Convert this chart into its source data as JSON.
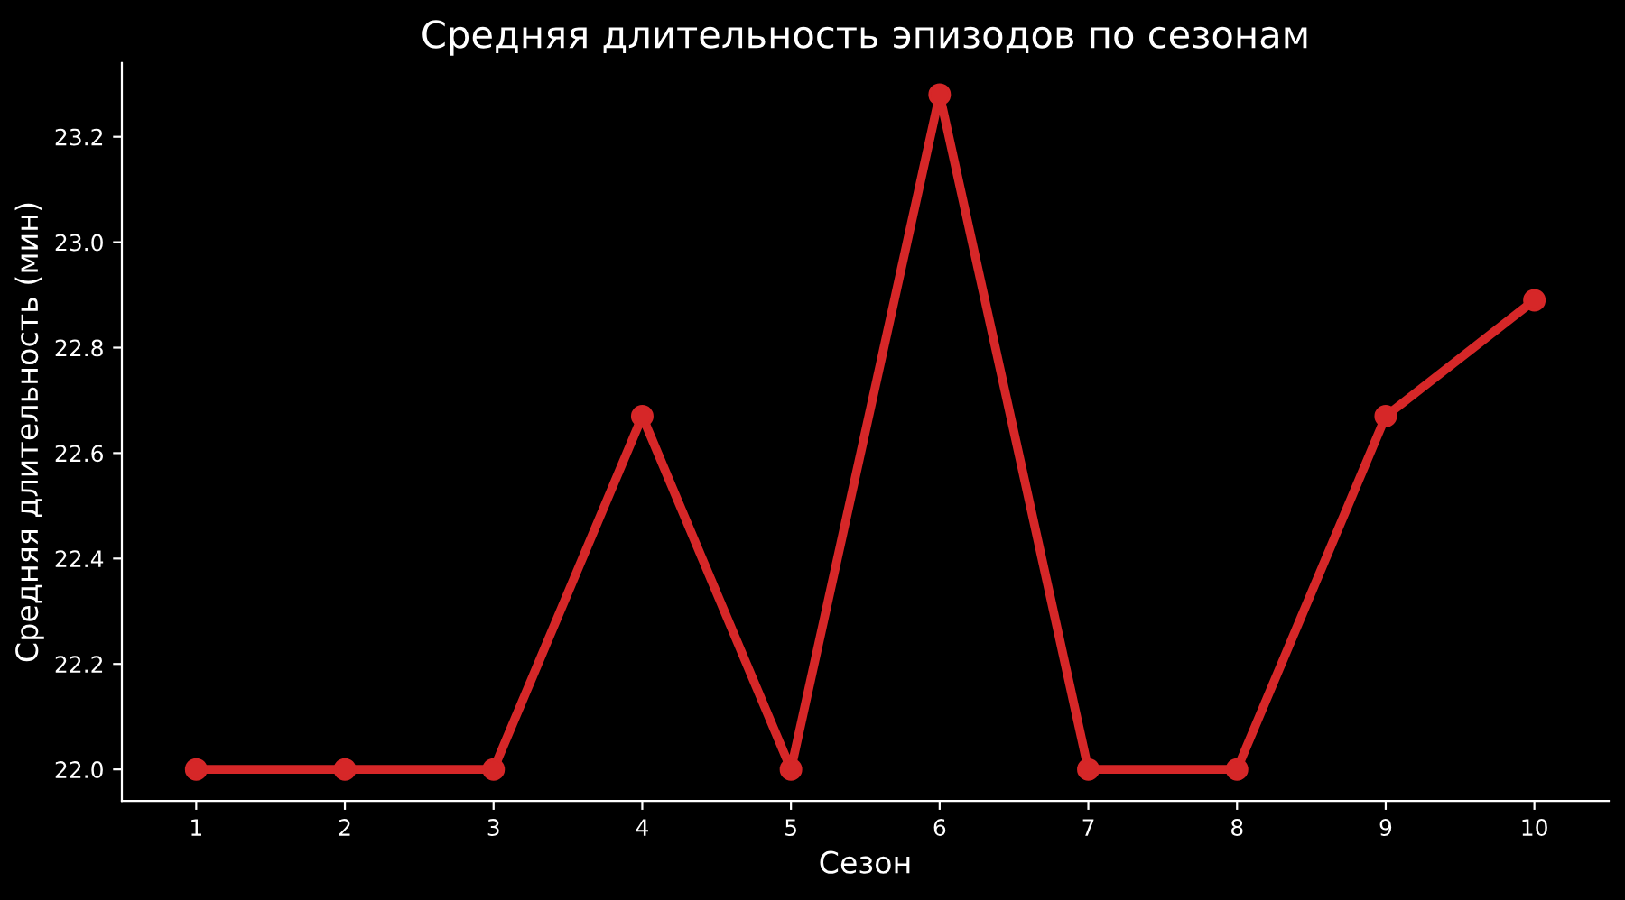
{
  "chart_data": {
    "type": "line",
    "title": "Средняя длительность эпизодов по сезонам",
    "xlabel": "Сезон",
    "ylabel": "Средняя длительность (мин)",
    "categories": [
      "1",
      "2",
      "3",
      "4",
      "5",
      "6",
      "7",
      "8",
      "9",
      "10"
    ],
    "series": [
      {
        "color": "#d62728",
        "values": [
          22.0,
          22.0,
          22.0,
          22.67,
          22.0,
          23.28,
          22.0,
          22.0,
          22.67,
          22.89
        ]
      }
    ],
    "ylim": [
      21.94,
      23.34
    ],
    "yticks": [
      {
        "value": 22.0,
        "label": "22.0"
      },
      {
        "value": 22.2,
        "label": "22.2"
      },
      {
        "value": 22.4,
        "label": "22.4"
      },
      {
        "value": 22.6,
        "label": "22.6"
      },
      {
        "value": 22.8,
        "label": "22.8"
      },
      {
        "value": 23.0,
        "label": "23.0"
      },
      {
        "value": 23.2,
        "label": "23.2"
      }
    ],
    "grid": false,
    "legend": false,
    "marker": "circle",
    "line_style": "solid"
  }
}
